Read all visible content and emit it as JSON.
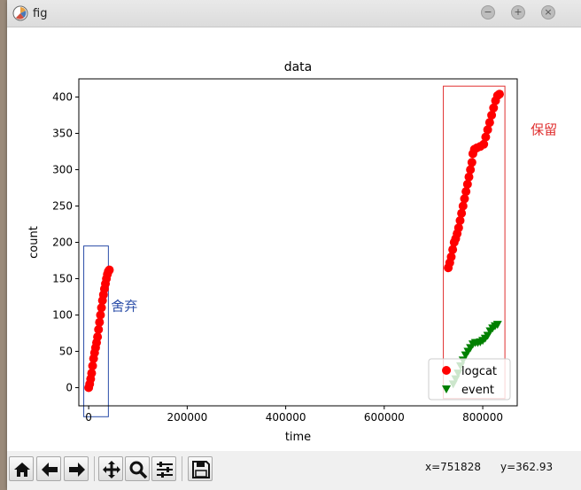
{
  "window": {
    "title": "fig",
    "icons": [
      "app-logo-icon",
      "minimize-icon",
      "maximize-icon",
      "close-icon"
    ]
  },
  "chart_data": {
    "type": "scatter",
    "title": "data",
    "xlabel": "time",
    "ylabel": "count",
    "xlim": [
      -20000,
      870000
    ],
    "ylim": [
      -25,
      425
    ],
    "xticks": [
      0,
      200000,
      400000,
      600000,
      800000
    ],
    "xtick_labels": [
      "0",
      "200000",
      "400000",
      "600000",
      "800000"
    ],
    "yticks": [
      0,
      50,
      100,
      150,
      200,
      250,
      300,
      350,
      400
    ],
    "ytick_labels": [
      "0",
      "50",
      "100",
      "150",
      "200",
      "250",
      "300",
      "350",
      "400"
    ],
    "grid": false,
    "legend_position": "bottom-right",
    "series": [
      {
        "name": "logcat",
        "marker": "circle",
        "color": "#ff0000",
        "points": [
          [
            0,
            0
          ],
          [
            2000,
            5
          ],
          [
            4000,
            12
          ],
          [
            6000,
            20
          ],
          [
            8000,
            30
          ],
          [
            10000,
            40
          ],
          [
            12000,
            48
          ],
          [
            14000,
            55
          ],
          [
            16000,
            62
          ],
          [
            18000,
            70
          ],
          [
            20000,
            80
          ],
          [
            22000,
            90
          ],
          [
            24000,
            100
          ],
          [
            26000,
            110
          ],
          [
            28000,
            120
          ],
          [
            30000,
            128
          ],
          [
            32000,
            136
          ],
          [
            34000,
            143
          ],
          [
            36000,
            150
          ],
          [
            38000,
            156
          ],
          [
            40000,
            160
          ],
          [
            42000,
            162
          ],
          [
            730000,
            165
          ],
          [
            733000,
            172
          ],
          [
            736000,
            180
          ],
          [
            739000,
            190
          ],
          [
            742000,
            200
          ],
          [
            745000,
            205
          ],
          [
            748000,
            212
          ],
          [
            751000,
            220
          ],
          [
            754000,
            230
          ],
          [
            757000,
            240
          ],
          [
            760000,
            250
          ],
          [
            763000,
            260
          ],
          [
            766000,
            270
          ],
          [
            769000,
            280
          ],
          [
            772000,
            290
          ],
          [
            775000,
            300
          ],
          [
            778000,
            310
          ],
          [
            780000,
            322
          ],
          [
            783000,
            328
          ],
          [
            788000,
            330
          ],
          [
            795000,
            332
          ],
          [
            802000,
            335
          ],
          [
            806000,
            345
          ],
          [
            810000,
            355
          ],
          [
            814000,
            365
          ],
          [
            818000,
            375
          ],
          [
            822000,
            385
          ],
          [
            826000,
            395
          ],
          [
            830000,
            402
          ],
          [
            834000,
            404
          ]
        ]
      },
      {
        "name": "event",
        "marker": "triangle_down",
        "color": "#008000",
        "points": [
          [
            740000,
            5
          ],
          [
            745000,
            12
          ],
          [
            750000,
            20
          ],
          [
            755000,
            30
          ],
          [
            760000,
            38
          ],
          [
            765000,
            45
          ],
          [
            770000,
            50
          ],
          [
            775000,
            55
          ],
          [
            780000,
            60
          ],
          [
            785000,
            62
          ],
          [
            790000,
            62
          ],
          [
            795000,
            63
          ],
          [
            800000,
            65
          ],
          [
            805000,
            68
          ],
          [
            810000,
            72
          ],
          [
            815000,
            78
          ],
          [
            820000,
            82
          ],
          [
            825000,
            85
          ],
          [
            830000,
            87
          ]
        ]
      }
    ],
    "annotations": [
      {
        "name": "discard-box",
        "text": "舍弃",
        "color": "#2b4ea8",
        "x_range": [
          -10000,
          40000
        ],
        "y_range": [
          -40,
          195
        ]
      },
      {
        "name": "keep-box",
        "text": "保留",
        "color": "#e03030",
        "x_range": [
          720000,
          845000
        ],
        "y_range": [
          -15,
          415
        ]
      }
    ]
  },
  "toolbar": {
    "buttons": [
      {
        "name": "home-button",
        "icon": "home-icon"
      },
      {
        "name": "back-button",
        "icon": "arrow-left-icon"
      },
      {
        "name": "forward-button",
        "icon": "arrow-right-icon"
      },
      {
        "name": "pan-button",
        "icon": "move-icon"
      },
      {
        "name": "zoom-button",
        "icon": "magnifier-icon"
      },
      {
        "name": "configure-button",
        "icon": "sliders-icon"
      },
      {
        "name": "save-button",
        "icon": "save-icon"
      }
    ],
    "coords": {
      "x_text": "x=751828",
      "y_text": "y=362.93"
    }
  }
}
